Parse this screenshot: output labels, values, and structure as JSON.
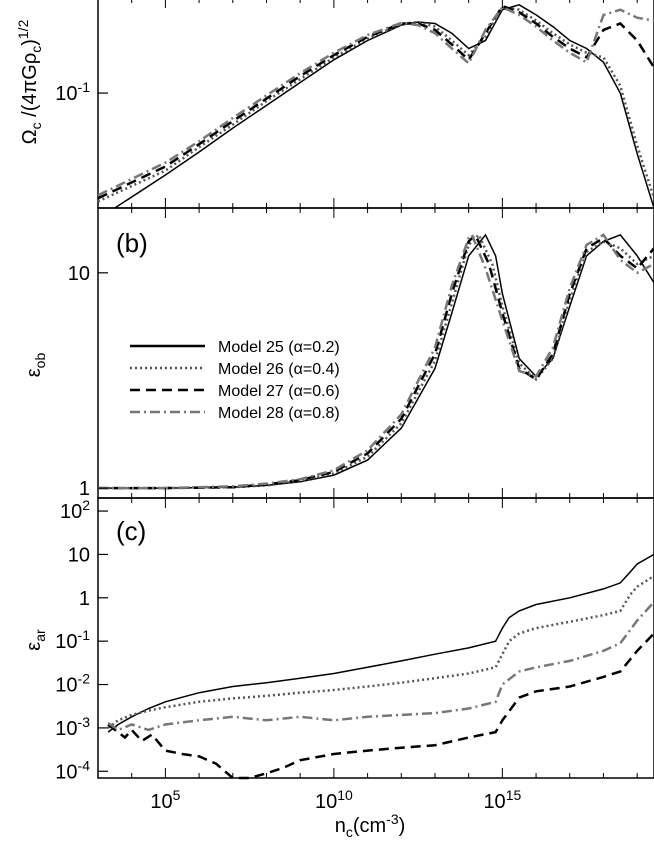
{
  "chart_data": [
    {
      "panel": "a",
      "type": "line",
      "ylabel": "Ωc /(4πGρc)1/2",
      "yscale": "log",
      "ylim": [
        0.022,
        0.35
      ],
      "xlim": [
        3.0,
        19.5
      ],
      "yticks": [
        {
          "value": 0.1,
          "label": "10-1"
        }
      ],
      "series": [
        {
          "name": "Model 25 (α=0.2)",
          "style": "solid",
          "color": "#000000",
          "x": [
            3.5,
            5,
            6,
            7,
            8,
            9,
            10,
            11,
            12,
            12.5,
            13,
            13.5,
            14,
            14.5,
            15,
            15.5,
            16,
            16.5,
            17,
            17.5,
            18,
            18.5,
            19,
            19.5
          ],
          "y": [
            0.022,
            0.034,
            0.046,
            0.063,
            0.085,
            0.115,
            0.155,
            0.2,
            0.245,
            0.255,
            0.25,
            0.22,
            0.18,
            0.2,
            0.3,
            0.32,
            0.28,
            0.24,
            0.2,
            0.18,
            0.15,
            0.1,
            0.045,
            0.022
          ]
        },
        {
          "name": "Model 26 (α=0.4)",
          "style": "dotted",
          "color": "#555555",
          "x": [
            3.0,
            5,
            6,
            7,
            8,
            9,
            10,
            11,
            12,
            12.5,
            13,
            13.5,
            14,
            14.5,
            15,
            15.5,
            16,
            16.5,
            17,
            17.5,
            18,
            18.5,
            19,
            19.5
          ],
          "y": [
            0.024,
            0.036,
            0.049,
            0.066,
            0.09,
            0.12,
            0.16,
            0.205,
            0.248,
            0.255,
            0.24,
            0.2,
            0.165,
            0.21,
            0.31,
            0.3,
            0.26,
            0.22,
            0.19,
            0.17,
            0.16,
            0.11,
            0.05,
            0.025
          ]
        },
        {
          "name": "Model 27 (α=0.6)",
          "style": "dashed",
          "color": "#000000",
          "x": [
            3.0,
            5,
            6,
            7,
            8,
            9,
            10,
            11,
            12,
            12.5,
            13,
            13.5,
            14,
            14.5,
            15,
            15.5,
            16,
            16.5,
            17,
            17.5,
            18,
            18.5,
            19,
            19.5
          ],
          "y": [
            0.025,
            0.038,
            0.051,
            0.069,
            0.093,
            0.125,
            0.165,
            0.21,
            0.25,
            0.25,
            0.23,
            0.19,
            0.155,
            0.22,
            0.315,
            0.29,
            0.25,
            0.21,
            0.18,
            0.16,
            0.23,
            0.25,
            0.2,
            0.14
          ]
        },
        {
          "name": "Model 28 (α=0.8)",
          "style": "dashdot",
          "color": "#777777",
          "x": [
            3.0,
            5,
            6,
            7,
            8,
            9,
            10,
            11,
            12,
            12.5,
            13,
            13.5,
            14,
            14.5,
            15,
            15.5,
            16,
            16.5,
            17,
            17.5,
            18,
            18.5,
            19,
            19.5
          ],
          "y": [
            0.026,
            0.04,
            0.053,
            0.072,
            0.097,
            0.13,
            0.17,
            0.215,
            0.252,
            0.245,
            0.22,
            0.18,
            0.148,
            0.23,
            0.31,
            0.28,
            0.24,
            0.2,
            0.17,
            0.15,
            0.28,
            0.3,
            0.27,
            0.26
          ]
        }
      ]
    },
    {
      "panel": "b",
      "type": "line",
      "ylabel": "εob",
      "yscale": "log",
      "ylim": [
        0.9,
        20
      ],
      "xlim": [
        3.0,
        19.5
      ],
      "yticks": [
        {
          "value": 1,
          "label": "1"
        },
        {
          "value": 10,
          "label": "10"
        }
      ],
      "legend": "center-left",
      "series": [
        {
          "name": "Model 25 (α=0.2)",
          "style": "solid",
          "color": "#000000",
          "x": [
            3,
            5,
            7,
            8,
            9,
            10,
            11,
            12,
            13,
            13.5,
            14,
            14.5,
            14.8,
            15,
            15.5,
            16,
            16.5,
            17,
            17.5,
            18,
            18.5,
            19,
            19.5
          ],
          "y": [
            1,
            1,
            1.01,
            1.03,
            1.07,
            1.15,
            1.35,
            1.9,
            3.6,
            6.5,
            12,
            15,
            12,
            8,
            4,
            3.3,
            4,
            7,
            12,
            14,
            15,
            12,
            9
          ]
        },
        {
          "name": "Model 26 (α=0.4)",
          "style": "dotted",
          "color": "#555555",
          "x": [
            3,
            5,
            7,
            8,
            9,
            10,
            11,
            12,
            13,
            13.5,
            14,
            14.3,
            14.7,
            15,
            15.5,
            16,
            16.5,
            17,
            17.5,
            18,
            18.5,
            19,
            19.5
          ],
          "y": [
            1,
            1,
            1.01,
            1.03,
            1.08,
            1.17,
            1.4,
            2.0,
            3.9,
            7.2,
            13.5,
            15,
            11,
            7,
            3.8,
            3.2,
            4,
            7.5,
            12.5,
            14,
            13,
            11,
            12
          ]
        },
        {
          "name": "Model 27 (α=0.6)",
          "style": "dashed",
          "color": "#000000",
          "x": [
            3,
            5,
            7,
            8,
            9,
            10,
            11,
            12,
            13,
            13.5,
            14,
            14.2,
            14.6,
            15,
            15.5,
            16,
            16.5,
            17,
            17.5,
            18,
            18.5,
            19,
            19.5
          ],
          "y": [
            1,
            1,
            1.01,
            1.04,
            1.09,
            1.19,
            1.45,
            2.1,
            4.2,
            8,
            14,
            15,
            11,
            6.5,
            3.6,
            3.2,
            4.2,
            8,
            13,
            14.5,
            12,
            10.5,
            13
          ]
        },
        {
          "name": "Model 28 (α=0.8)",
          "style": "dashdot",
          "color": "#777777",
          "x": [
            3,
            5,
            7,
            8,
            9,
            10,
            11,
            12,
            13,
            13.5,
            14,
            14.1,
            14.5,
            15,
            15.5,
            16,
            16.5,
            17,
            17.5,
            18,
            18.5,
            19,
            19.5
          ],
          "y": [
            1,
            1,
            1.02,
            1.05,
            1.1,
            1.21,
            1.5,
            2.2,
            4.5,
            8.7,
            14.5,
            15,
            10.5,
            6,
            3.5,
            3.3,
            4.5,
            8.5,
            13.5,
            15,
            11.5,
            10,
            11
          ]
        }
      ]
    },
    {
      "panel": "c",
      "type": "line",
      "ylabel": "εar",
      "xlabel": "nc(cm-3)",
      "yscale": "log",
      "xscale": "log",
      "ylim": [
        7e-05,
        200
      ],
      "xlim": [
        3.0,
        19.5
      ],
      "yticks": [
        {
          "value": 100,
          "label": "102"
        },
        {
          "value": 10,
          "label": "10"
        },
        {
          "value": 1,
          "label": "1"
        },
        {
          "value": 0.1,
          "label": "10-1"
        },
        {
          "value": 0.01,
          "label": "10-2"
        },
        {
          "value": 0.001,
          "label": "10-3"
        },
        {
          "value": 0.0001,
          "label": "10-4"
        }
      ],
      "xticks": [
        {
          "value": 5,
          "label": "105"
        },
        {
          "value": 10,
          "label": "1010"
        },
        {
          "value": 15,
          "label": "1015"
        }
      ],
      "series": [
        {
          "name": "Model 25 (α=0.2)",
          "style": "solid",
          "color": "#000000",
          "x": [
            3.3,
            3.6,
            4,
            4.5,
            5,
            6,
            7,
            8,
            9,
            10,
            11,
            12,
            13,
            14,
            14.8,
            15,
            15.2,
            15.5,
            16,
            17,
            18,
            18.5,
            18.8,
            19,
            19.5
          ],
          "y": [
            0.0008,
            0.0012,
            0.0018,
            0.0028,
            0.004,
            0.0065,
            0.009,
            0.011,
            0.014,
            0.018,
            0.025,
            0.035,
            0.05,
            0.07,
            0.1,
            0.2,
            0.35,
            0.5,
            0.7,
            1.0,
            1.6,
            2.2,
            4,
            6,
            10
          ]
        },
        {
          "name": "Model 26 (α=0.4)",
          "style": "dotted",
          "color": "#555555",
          "x": [
            3.3,
            3.6,
            4,
            4.5,
            5,
            6,
            7,
            8,
            9,
            10,
            11,
            12,
            13,
            14,
            14.8,
            15,
            15.2,
            15.5,
            16,
            17,
            18,
            18.5,
            18.8,
            19,
            19.5
          ],
          "y": [
            0.001,
            0.0015,
            0.002,
            0.0025,
            0.003,
            0.004,
            0.0048,
            0.0055,
            0.0065,
            0.0075,
            0.009,
            0.011,
            0.014,
            0.018,
            0.025,
            0.05,
            0.1,
            0.15,
            0.2,
            0.28,
            0.4,
            0.5,
            1.2,
            1.8,
            3.2
          ]
        },
        {
          "name": "Model 27 (α=0.6)",
          "style": "dashed",
          "color": "#000000",
          "x": [
            3.3,
            3.8,
            4,
            4.3,
            4.6,
            5,
            5.5,
            6,
            6.5,
            7,
            7.5,
            8,
            8.5,
            9,
            10,
            11,
            12,
            13,
            14,
            14.8,
            15,
            15.5,
            16,
            17,
            18,
            18.5,
            19,
            19.5
          ],
          "y": [
            0.0012,
            0.0006,
            0.0009,
            0.0005,
            0.0007,
            0.0003,
            0.00025,
            0.00022,
            0.00015,
            7e-05,
            6e-05,
            9e-05,
            0.00012,
            0.00018,
            0.00025,
            0.0003,
            0.00035,
            0.0004,
            0.0006,
            0.0008,
            0.0015,
            0.005,
            0.007,
            0.009,
            0.015,
            0.02,
            0.06,
            0.15
          ]
        },
        {
          "name": "Model 28 (α=0.8)",
          "style": "dashdot",
          "color": "#777777",
          "x": [
            3.3,
            3.6,
            4,
            4.5,
            5,
            6,
            7,
            8,
            9,
            10,
            11,
            12,
            13,
            14,
            14.8,
            15,
            15.5,
            16,
            17,
            18,
            18.5,
            19,
            19.5
          ],
          "y": [
            0.0013,
            0.0009,
            0.0012,
            0.0009,
            0.0012,
            0.0015,
            0.0018,
            0.0015,
            0.0018,
            0.0015,
            0.0018,
            0.002,
            0.0022,
            0.0028,
            0.004,
            0.01,
            0.02,
            0.025,
            0.035,
            0.06,
            0.09,
            0.3,
            0.8
          ]
        }
      ]
    }
  ],
  "legend": {
    "entries": [
      {
        "label": "Model 25 (α=0.2)",
        "style": "solid",
        "color": "#000000"
      },
      {
        "label": "Model 26 (α=0.4)",
        "style": "dotted",
        "color": "#555555"
      },
      {
        "label": "Model 27 (α=0.6)",
        "style": "dashed",
        "color": "#000000"
      },
      {
        "label": "Model 28 (α=0.8)",
        "style": "dashdot",
        "color": "#777777"
      }
    ]
  },
  "panel_labels": {
    "b": "(b)",
    "c": "(c)"
  }
}
